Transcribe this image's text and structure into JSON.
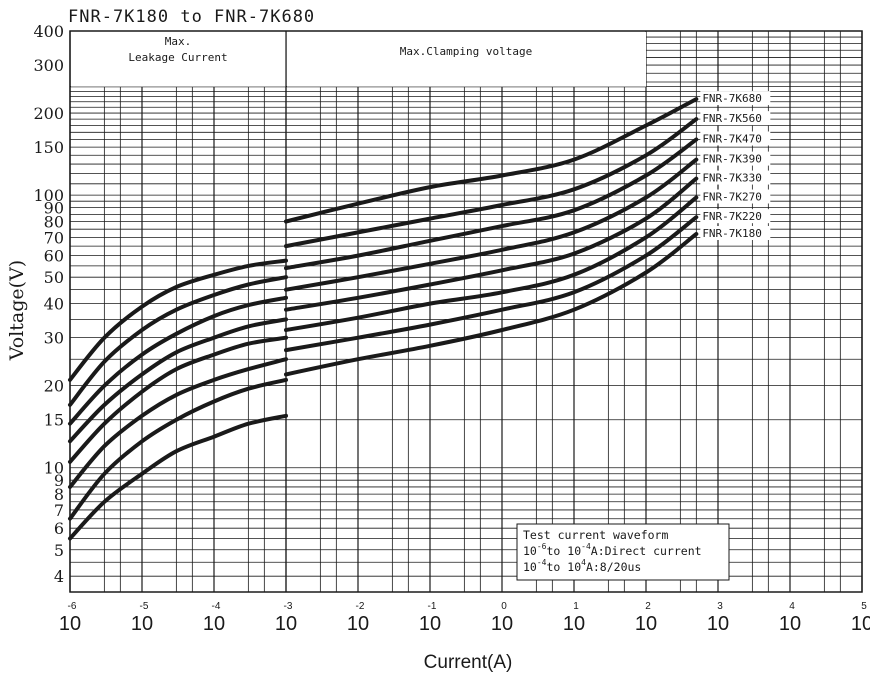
{
  "chart_data": {
    "type": "line",
    "title": "FNR-7K180 to FNR-7K680",
    "xlabel": "Current(A)",
    "ylabel": "Voltage(V)",
    "x_scale": "log",
    "y_scale": "log",
    "xlim": [
      1e-06,
      100000
    ],
    "ylim": [
      3.5,
      400
    ],
    "x_ticks": [
      {
        "value": 1e-06,
        "base": "10",
        "exp": "-6"
      },
      {
        "value": 1e-05,
        "base": "10",
        "exp": "-5"
      },
      {
        "value": 0.0001,
        "base": "10",
        "exp": "-4"
      },
      {
        "value": 0.001,
        "base": "10",
        "exp": "-3"
      },
      {
        "value": 0.01,
        "base": "10",
        "exp": "-2"
      },
      {
        "value": 0.1,
        "base": "10",
        "exp": "-1"
      },
      {
        "value": 1,
        "base": "10",
        "exp": "0"
      },
      {
        "value": 10,
        "base": "10",
        "exp": "1"
      },
      {
        "value": 100,
        "base": "10",
        "exp": "2"
      },
      {
        "value": 1000,
        "base": "10",
        "exp": "3"
      },
      {
        "value": 10000,
        "base": "10",
        "exp": "4"
      },
      {
        "value": 100000,
        "base": "10",
        "exp": "5"
      }
    ],
    "y_ticks": [
      {
        "value": 4,
        "label": "4"
      },
      {
        "value": 5,
        "label": "5"
      },
      {
        "value": 6,
        "label": "6"
      },
      {
        "value": 7,
        "label": "7"
      },
      {
        "value": 8,
        "label": "8"
      },
      {
        "value": 9,
        "label": "9"
      },
      {
        "value": 10,
        "label": "10"
      },
      {
        "value": 15,
        "label": "15"
      },
      {
        "value": 20,
        "label": "20"
      },
      {
        "value": 30,
        "label": "30"
      },
      {
        "value": 40,
        "label": "40"
      },
      {
        "value": 50,
        "label": "50"
      },
      {
        "value": 60,
        "label": "60"
      },
      {
        "value": 70,
        "label": "70"
      },
      {
        "value": 80,
        "label": "80"
      },
      {
        "value": 90,
        "label": "90"
      },
      {
        "value": 100,
        "label": "100"
      },
      {
        "value": 150,
        "label": "150"
      },
      {
        "value": 200,
        "label": "200"
      },
      {
        "value": 300,
        "label": "300"
      },
      {
        "value": 400,
        "label": "400"
      }
    ],
    "regions": {
      "leakage": {
        "label_line1": "Max.",
        "label_line2": "Leakage Current",
        "x_range": [
          1e-06,
          0.001
        ]
      },
      "clamping": {
        "label": "Max.Clamping voltage",
        "x_range": [
          0.001,
          100
        ]
      }
    },
    "note": {
      "line1": "Test current waveform",
      "line2_base1": "10",
      "line2_exp1": "-6",
      "line2_mid": "to 10",
      "line2_exp2": "-4",
      "line2_rest": "A:Direct current",
      "line3_base1": "10",
      "line3_exp1": "-4",
      "line3_mid": "to 10",
      "line3_exp2": "4",
      "line3_rest": "A:8/20us"
    },
    "series": [
      {
        "name": "FNR-7K680",
        "leakage": [
          [
            1e-06,
            21
          ],
          [
            3e-06,
            30
          ],
          [
            1e-05,
            39
          ],
          [
            3e-05,
            46
          ],
          [
            0.0001,
            51
          ],
          [
            0.0003,
            55
          ],
          [
            0.001,
            57.5
          ]
        ],
        "clamping": [
          [
            0.001,
            80
          ],
          [
            0.01,
            93
          ],
          [
            0.1,
            107
          ],
          [
            1,
            118
          ],
          [
            10,
            135
          ],
          [
            100,
            180
          ],
          [
            500,
            225
          ]
        ]
      },
      {
        "name": "FNR-7K560",
        "leakage": [
          [
            1e-06,
            17
          ],
          [
            3e-06,
            24.5
          ],
          [
            1e-05,
            32
          ],
          [
            3e-05,
            38
          ],
          [
            0.0001,
            43
          ],
          [
            0.0003,
            47
          ],
          [
            0.001,
            50
          ]
        ],
        "clamping": [
          [
            0.001,
            65
          ],
          [
            0.01,
            73
          ],
          [
            0.1,
            82
          ],
          [
            1,
            92
          ],
          [
            10,
            105
          ],
          [
            100,
            140
          ],
          [
            500,
            190
          ]
        ]
      },
      {
        "name": "FNR-7K470",
        "leakage": [
          [
            1e-06,
            14.5
          ],
          [
            3e-06,
            20
          ],
          [
            1e-05,
            26
          ],
          [
            3e-05,
            31
          ],
          [
            0.0001,
            36
          ],
          [
            0.0003,
            39.5
          ],
          [
            0.001,
            42
          ]
        ],
        "clamping": [
          [
            0.001,
            54
          ],
          [
            0.01,
            60
          ],
          [
            0.1,
            68
          ],
          [
            1,
            77
          ],
          [
            10,
            88
          ],
          [
            100,
            118
          ],
          [
            500,
            160
          ]
        ]
      },
      {
        "name": "FNR-7K390",
        "leakage": [
          [
            1e-06,
            12.5
          ],
          [
            3e-06,
            17
          ],
          [
            1e-05,
            22
          ],
          [
            3e-05,
            26.5
          ],
          [
            0.0001,
            30
          ],
          [
            0.0003,
            33
          ],
          [
            0.001,
            35
          ]
        ],
        "clamping": [
          [
            0.001,
            45
          ],
          [
            0.01,
            50
          ],
          [
            0.1,
            56
          ],
          [
            1,
            63
          ],
          [
            10,
            73
          ],
          [
            100,
            98
          ],
          [
            500,
            135
          ]
        ]
      },
      {
        "name": "FNR-7K330",
        "leakage": [
          [
            1e-06,
            10.5
          ],
          [
            3e-06,
            14.5
          ],
          [
            1e-05,
            19
          ],
          [
            3e-05,
            23
          ],
          [
            0.0001,
            26
          ],
          [
            0.0003,
            28.5
          ],
          [
            0.001,
            30
          ]
        ],
        "clamping": [
          [
            0.001,
            38
          ],
          [
            0.01,
            42
          ],
          [
            0.1,
            47
          ],
          [
            1,
            53
          ],
          [
            10,
            61
          ],
          [
            100,
            82
          ],
          [
            500,
            115
          ]
        ]
      },
      {
        "name": "FNR-7K270",
        "leakage": [
          [
            1e-06,
            8.5
          ],
          [
            3e-06,
            12
          ],
          [
            1e-05,
            15.5
          ],
          [
            3e-05,
            18.5
          ],
          [
            0.0001,
            21
          ],
          [
            0.0003,
            23
          ],
          [
            0.001,
            25
          ]
        ],
        "clamping": [
          [
            0.001,
            32
          ],
          [
            0.01,
            35.5
          ],
          [
            0.1,
            40
          ],
          [
            1,
            44
          ],
          [
            10,
            51
          ],
          [
            100,
            70
          ],
          [
            500,
            98
          ]
        ]
      },
      {
        "name": "FNR-7K220",
        "leakage": [
          [
            1e-06,
            6.5
          ],
          [
            3e-06,
            9.5
          ],
          [
            1e-05,
            12.5
          ],
          [
            3e-05,
            15
          ],
          [
            0.0001,
            17.5
          ],
          [
            0.0003,
            19.5
          ],
          [
            0.001,
            21
          ]
        ],
        "clamping": [
          [
            0.001,
            27
          ],
          [
            0.01,
            30
          ],
          [
            0.1,
            33.5
          ],
          [
            1,
            38
          ],
          [
            10,
            44
          ],
          [
            100,
            60
          ],
          [
            500,
            83
          ]
        ]
      },
      {
        "name": "FNR-7K180",
        "leakage": [
          [
            1e-06,
            5.5
          ],
          [
            3e-06,
            7.5
          ],
          [
            1e-05,
            9.5
          ],
          [
            3e-05,
            11.5
          ],
          [
            0.0001,
            13
          ],
          [
            0.0003,
            14.5
          ],
          [
            0.001,
            15.5
          ]
        ],
        "clamping": [
          [
            0.001,
            22
          ],
          [
            0.01,
            25
          ],
          [
            0.1,
            28
          ],
          [
            1,
            32
          ],
          [
            10,
            38
          ],
          [
            100,
            52
          ],
          [
            500,
            72
          ]
        ]
      }
    ]
  }
}
